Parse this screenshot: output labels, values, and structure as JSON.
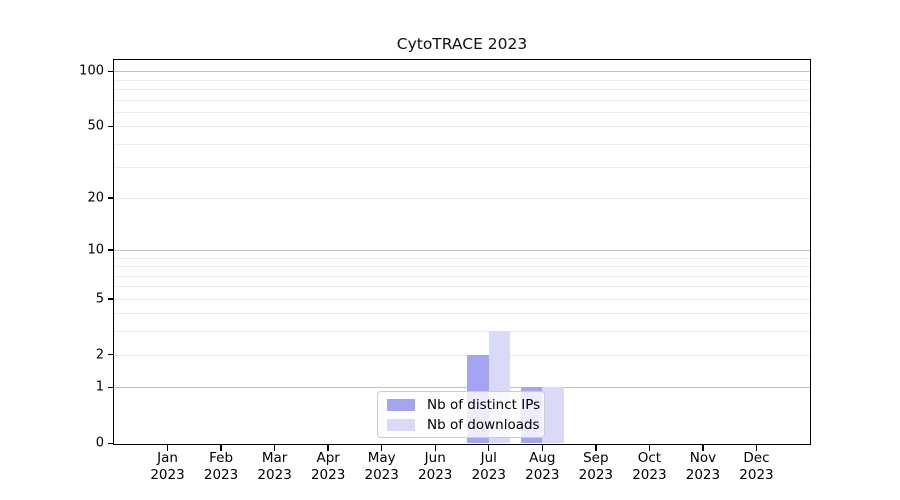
{
  "chart_data": {
    "type": "bar",
    "title": "CytoTRACE 2023",
    "categories": [
      "Jan",
      "Feb",
      "Mar",
      "Apr",
      "May",
      "Jun",
      "Jul",
      "Aug",
      "Sep",
      "Oct",
      "Nov",
      "Dec"
    ],
    "category_year": "2023",
    "series": [
      {
        "name": "Nb of distinct IPs",
        "color": "#a4a4f2",
        "values": [
          0,
          0,
          0,
          0,
          0,
          0,
          2,
          1,
          0,
          0,
          0,
          0
        ]
      },
      {
        "name": "Nb of downloads",
        "color": "#d9d9f8",
        "values": [
          0,
          0,
          0,
          0,
          0,
          0,
          3,
          1,
          0,
          0,
          0,
          0
        ]
      }
    ],
    "yticks": [
      0,
      1,
      2,
      5,
      10,
      20,
      50,
      100
    ],
    "gridlines": {
      "minor": [
        2,
        3,
        4,
        5,
        6,
        7,
        8,
        9,
        20,
        30,
        40,
        50,
        60,
        70,
        80,
        90
      ],
      "major": [
        1,
        10,
        100
      ]
    },
    "yscale": "log10(value+1)",
    "ylim": [
      0,
      115
    ],
    "xlabel": "",
    "ylabel": "",
    "legend_position": "bottom-center",
    "colors": {
      "spine": "#000000",
      "grid_minor": "#ececec",
      "grid_major": "#c0c0c0",
      "text": "#000000",
      "legend_border": "#cccccc",
      "background": "#ffffff"
    }
  }
}
